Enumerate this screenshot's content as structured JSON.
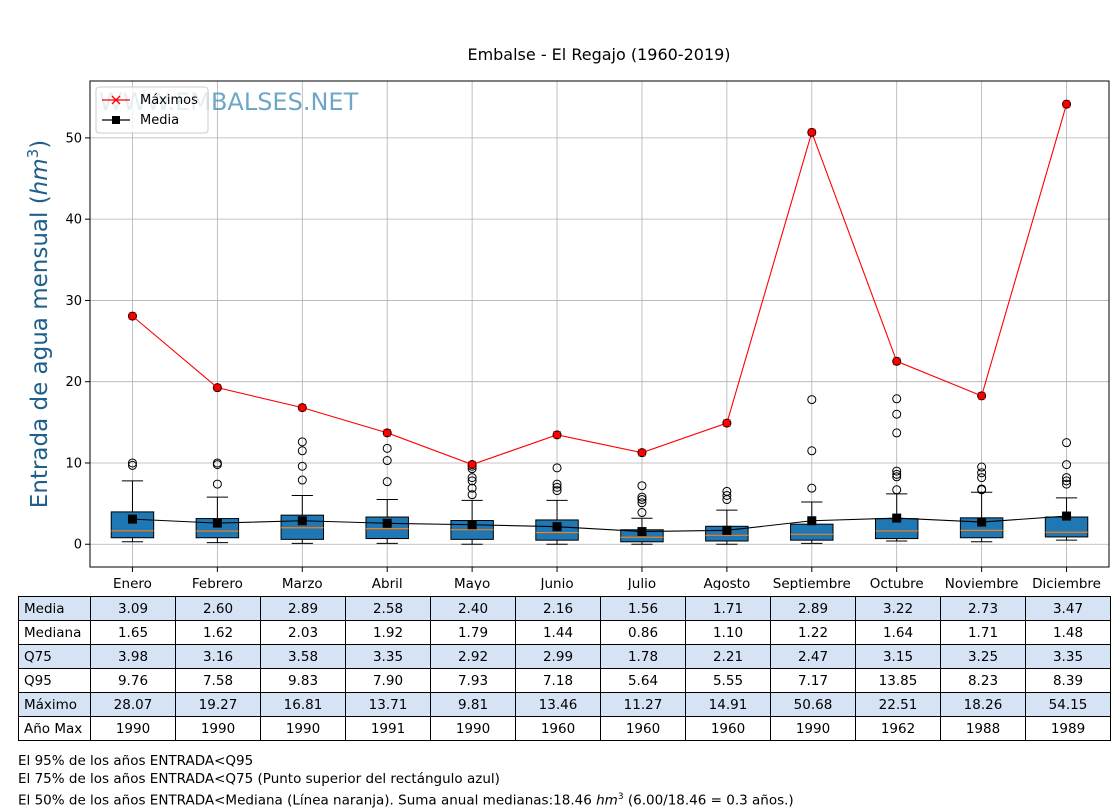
{
  "chart_data": {
    "type": "box",
    "title": "Embalse - El Regajo (1960-2019)",
    "ylabel": "Entrada de agua mensual",
    "ylabel_unit": "hm",
    "ylabel_unit_sup": "3",
    "watermark": "WWW.EMBALSES.NET",
    "ylim": [
      -2.8,
      57
    ],
    "yticks": [
      0,
      10,
      20,
      30,
      40,
      50
    ],
    "grid": true,
    "legend_position": "top-left",
    "categories": [
      "Enero",
      "Febrero",
      "Marzo",
      "Abril",
      "Mayo",
      "Junio",
      "Julio",
      "Agosto",
      "Septiembre",
      "Octubre",
      "Noviembre",
      "Diciembre"
    ],
    "boxes": [
      {
        "whisker_low": 0.3,
        "q1": 0.8,
        "median": 1.65,
        "q3": 3.98,
        "whisker_high": 7.8,
        "outliers": [
          9.7,
          10.0
        ]
      },
      {
        "whisker_low": 0.2,
        "q1": 0.8,
        "median": 1.62,
        "q3": 3.16,
        "whisker_high": 5.8,
        "outliers": [
          7.4,
          9.8,
          10.0
        ]
      },
      {
        "whisker_low": 0.1,
        "q1": 0.6,
        "median": 2.03,
        "q3": 3.58,
        "whisker_high": 6.0,
        "outliers": [
          7.9,
          9.6,
          11.5,
          12.6
        ]
      },
      {
        "whisker_low": 0.1,
        "q1": 0.7,
        "median": 1.92,
        "q3": 3.35,
        "whisker_high": 5.5,
        "outliers": [
          7.7,
          10.3,
          11.8
        ]
      },
      {
        "whisker_low": 0.0,
        "q1": 0.6,
        "median": 1.79,
        "q3": 2.92,
        "whisker_high": 5.4,
        "outliers": [
          6.1,
          6.9,
          7.8,
          8.2,
          9.3,
          9.6
        ]
      },
      {
        "whisker_low": 0.0,
        "q1": 0.5,
        "median": 1.44,
        "q3": 2.99,
        "whisker_high": 5.4,
        "outliers": [
          6.6,
          7.0,
          7.4,
          9.4
        ]
      },
      {
        "whisker_low": 0.0,
        "q1": 0.3,
        "median": 0.86,
        "q3": 1.78,
        "whisker_high": 3.2,
        "outliers": [
          3.9,
          5.1,
          5.5,
          5.8,
          7.2
        ]
      },
      {
        "whisker_low": 0.0,
        "q1": 0.4,
        "median": 1.1,
        "q3": 2.21,
        "whisker_high": 4.2,
        "outliers": [
          5.5,
          6.0,
          6.5
        ]
      },
      {
        "whisker_low": 0.1,
        "q1": 0.5,
        "median": 1.22,
        "q3": 2.47,
        "whisker_high": 5.2,
        "outliers": [
          6.9,
          11.5,
          17.8
        ]
      },
      {
        "whisker_low": 0.4,
        "q1": 0.7,
        "median": 1.64,
        "q3": 3.15,
        "whisker_high": 6.2,
        "outliers": [
          6.7,
          8.3,
          8.6,
          9.0,
          13.7,
          16.0,
          17.9
        ]
      },
      {
        "whisker_low": 0.3,
        "q1": 0.8,
        "median": 1.71,
        "q3": 3.25,
        "whisker_high": 6.4,
        "outliers": [
          6.7,
          6.8,
          8.2,
          8.8,
          9.5
        ]
      },
      {
        "whisker_low": 0.5,
        "q1": 0.9,
        "median": 1.48,
        "q3": 3.35,
        "whisker_high": 5.7,
        "outliers": [
          7.4,
          7.8,
          8.2,
          9.8,
          12.5
        ]
      }
    ],
    "series": [
      {
        "name": "Máximos",
        "color": "#ff0000",
        "marker": "x",
        "values": [
          28.07,
          19.27,
          16.81,
          13.71,
          9.81,
          13.46,
          11.27,
          14.91,
          50.68,
          22.51,
          18.26,
          54.15
        ]
      },
      {
        "name": "Media",
        "color": "#000000",
        "marker": "square",
        "values": [
          3.09,
          2.6,
          2.89,
          2.58,
          2.4,
          2.16,
          1.56,
          1.71,
          2.89,
          3.22,
          2.73,
          3.47
        ]
      }
    ],
    "colors": {
      "box_fill": "#1f77b4",
      "median_line": "#ff7f0e",
      "grid": "#b0b0b0",
      "watermark": "#5f9ec0",
      "ylabel": "#1f5f8b"
    }
  },
  "table": {
    "rows": [
      {
        "label": "Media",
        "values": [
          "3.09",
          "2.60",
          "2.89",
          "2.58",
          "2.40",
          "2.16",
          "1.56",
          "1.71",
          "2.89",
          "3.22",
          "2.73",
          "3.47"
        ]
      },
      {
        "label": "Mediana",
        "values": [
          "1.65",
          "1.62",
          "2.03",
          "1.92",
          "1.79",
          "1.44",
          "0.86",
          "1.10",
          "1.22",
          "1.64",
          "1.71",
          "1.48"
        ]
      },
      {
        "label": "Q75",
        "values": [
          "3.98",
          "3.16",
          "3.58",
          "3.35",
          "2.92",
          "2.99",
          "1.78",
          "2.21",
          "2.47",
          "3.15",
          "3.25",
          "3.35"
        ]
      },
      {
        "label": "Q95",
        "values": [
          "9.76",
          "7.58",
          "9.83",
          "7.90",
          "7.93",
          "7.18",
          "5.64",
          "5.55",
          "7.17",
          "13.85",
          "8.23",
          "8.39"
        ]
      },
      {
        "label": "Máximo",
        "values": [
          "28.07",
          "19.27",
          "16.81",
          "13.71",
          "9.81",
          "13.46",
          "11.27",
          "14.91",
          "50.68",
          "22.51",
          "18.26",
          "54.15"
        ]
      },
      {
        "label": "Año Max",
        "values": [
          "1990",
          "1990",
          "1990",
          "1991",
          "1990",
          "1960",
          "1960",
          "1960",
          "1990",
          "1962",
          "1988",
          "1989"
        ]
      }
    ]
  },
  "notes": {
    "line1": "El 95% de los años ENTRADA<Q95",
    "line2": "El 75% de los años ENTRADA<Q75 (Punto superior del rectángulo azul)",
    "line3_before": "El 50% de los años ENTRADA<Mediana (Línea naranja). Suma anual medianas:18.46 ",
    "line3_unit": "hm",
    "line3_sup": "3",
    "line3_after": " (6.00/18.46 = 0.3 años.)"
  }
}
